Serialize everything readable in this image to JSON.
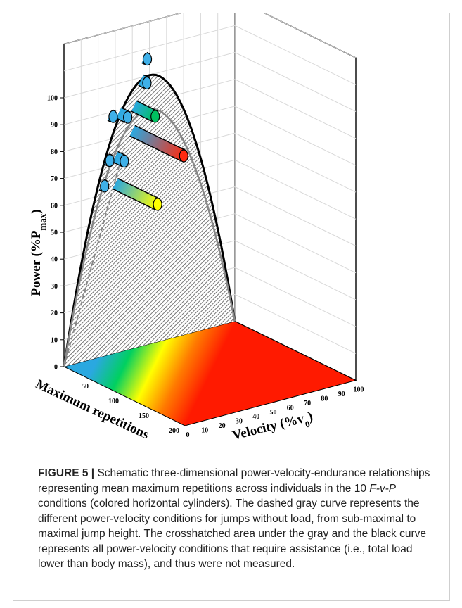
{
  "chart_data": {
    "type": "3d-surface",
    "y_axis": {
      "label": "Power (%P",
      "label_sub": "max",
      "label_close": ")",
      "ticks": [
        "0",
        "10",
        "20",
        "30",
        "40",
        "50",
        "60",
        "70",
        "80",
        "90",
        "100"
      ],
      "range": [
        0,
        100
      ]
    },
    "x_axis": {
      "label": "Velocity (%v",
      "label_sub": "0",
      "label_close": ")",
      "ticks": [
        "0",
        "10",
        "20",
        "30",
        "40",
        "50",
        "60",
        "70",
        "80",
        "90",
        "100"
      ],
      "range": [
        0,
        100
      ]
    },
    "z_axis": {
      "label": "Maximum repetitions",
      "ticks": [
        "50",
        "100",
        "150",
        "200"
      ],
      "range": [
        0,
        200
      ]
    },
    "curves": {
      "black_max_power": {
        "x": [
          0,
          10,
          20,
          30,
          40,
          50,
          60,
          70,
          80,
          90,
          100
        ],
        "y": [
          0,
          36,
          64,
          84,
          96,
          100,
          96,
          84,
          64,
          36,
          0
        ]
      },
      "gray_no_load": {
        "x": [
          0,
          10,
          20,
          30,
          40,
          50,
          60,
          70,
          80,
          90,
          100
        ],
        "y": [
          0,
          31,
          56,
          74,
          86,
          91,
          88,
          77,
          59,
          33,
          0
        ]
      }
    },
    "cylinders": [
      {
        "v": 30,
        "p": 63,
        "reps": 70,
        "color_end": "#ffff00"
      },
      {
        "v": 30,
        "p": 73,
        "reps": 15,
        "color_end": "#3fb0e8"
      },
      {
        "v": 40,
        "p": 81,
        "reps": 85,
        "color_end": "#ff2a10"
      },
      {
        "v": 32,
        "p": 89,
        "reps": 15,
        "color_end": "#3fb0e8"
      },
      {
        "v": 41,
        "p": 90,
        "reps": 35,
        "color_end": "#00c060"
      },
      {
        "v": 45,
        "p": 99,
        "reps": 10,
        "color_end": "#3fb0e8"
      },
      {
        "v": 47,
        "p": 107,
        "reps": 5,
        "color_end": "#3fb0e8"
      },
      {
        "v": 25,
        "p": 73,
        "reps": 5,
        "color_end": "#3fb0e8"
      },
      {
        "v": 22,
        "p": 64,
        "reps": 5,
        "color_end": "#3fb0e8"
      },
      {
        "v": 27,
        "p": 89,
        "reps": 5,
        "color_end": "#3fb0e8"
      }
    ],
    "floor_gradient": [
      "#2aa8e0",
      "#2aa8e0",
      "#00d060",
      "#ffff00",
      "#ff7a00",
      "#ff1a00"
    ]
  },
  "caption": {
    "label": "FIGURE 5 |",
    "part1": " Schematic three-dimensional power-velocity-endurance relationships representing mean maximum repetitions across individuals in the 10 ",
    "italic": "F-v-P",
    "part2": " conditions (colored horizontal cylinders). The dashed gray curve represents the different power-velocity conditions for jumps without load, from sub-maximal to maximal jump height. The crosshatched area under the gray and the black curve represents all power-velocity conditions that require assistance (i.e., total load lower than body mass), and thus were not measured."
  }
}
